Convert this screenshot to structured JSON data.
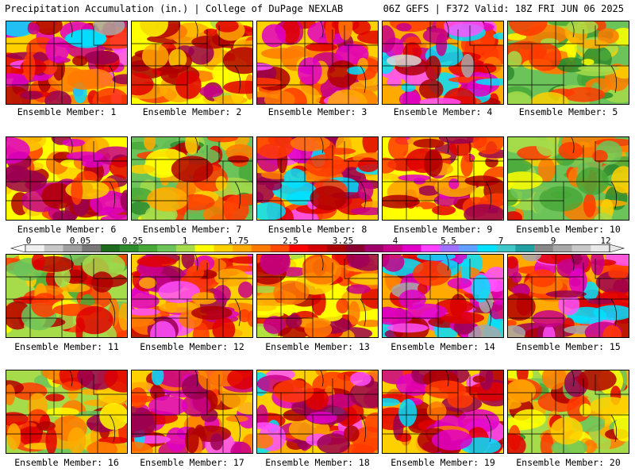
{
  "header": {
    "left_title": "Precipitation Accumulation (in.) | College of DuPage NEXLAB",
    "right_title": "06Z GEFS | F372 Valid: 18Z FRI JUN 06 2025"
  },
  "colorbar": {
    "labels": [
      "0",
      "0.05",
      "0.25",
      "1",
      "1.75",
      "2.5",
      "3.25",
      "4",
      "5.5",
      "7",
      "9",
      "12"
    ],
    "colors": [
      "#f0f0f0",
      "#c8c8c8",
      "#a0a0a0",
      "#787878",
      "#1e6b1e",
      "#2e8b2e",
      "#48a838",
      "#6cc35a",
      "#a6dc4a",
      "#ffff00",
      "#ffd000",
      "#ffaa00",
      "#ff7a00",
      "#ff4a00",
      "#ff0000",
      "#d40000",
      "#aa0000",
      "#8a0030",
      "#a0006a",
      "#c8008a",
      "#e000c8",
      "#ff40ff",
      "#a070ff",
      "#60a0ff",
      "#00e0ff",
      "#40c8c8",
      "#20a0a0",
      "#888888",
      "#a8a8a8",
      "#c8c8c8",
      "#e8e8e8"
    ]
  },
  "panels": [
    {
      "caption": "Ensemble Member: 1"
    },
    {
      "caption": "Ensemble Member: 2"
    },
    {
      "caption": "Ensemble Member: 3"
    },
    {
      "caption": "Ensemble Member: 4"
    },
    {
      "caption": "Ensemble Member: 5"
    },
    {
      "caption": "Ensemble Member: 6"
    },
    {
      "caption": "Ensemble Member: 7"
    },
    {
      "caption": "Ensemble Member: 8"
    },
    {
      "caption": "Ensemble Member: 9"
    },
    {
      "caption": "Ensemble Member: 10"
    },
    {
      "caption": "Ensemble Member: 11"
    },
    {
      "caption": "Ensemble Member: 12"
    },
    {
      "caption": "Ensemble Member: 13"
    },
    {
      "caption": "Ensemble Member: 14"
    },
    {
      "caption": "Ensemble Member: 15"
    },
    {
      "caption": "Ensemble Member: 16"
    },
    {
      "caption": "Ensemble Member: 17"
    },
    {
      "caption": "Ensemble Member: 18"
    },
    {
      "caption": "Ensemble Member: 19"
    },
    {
      "caption": "Ensemble Member: 20"
    }
  ]
}
